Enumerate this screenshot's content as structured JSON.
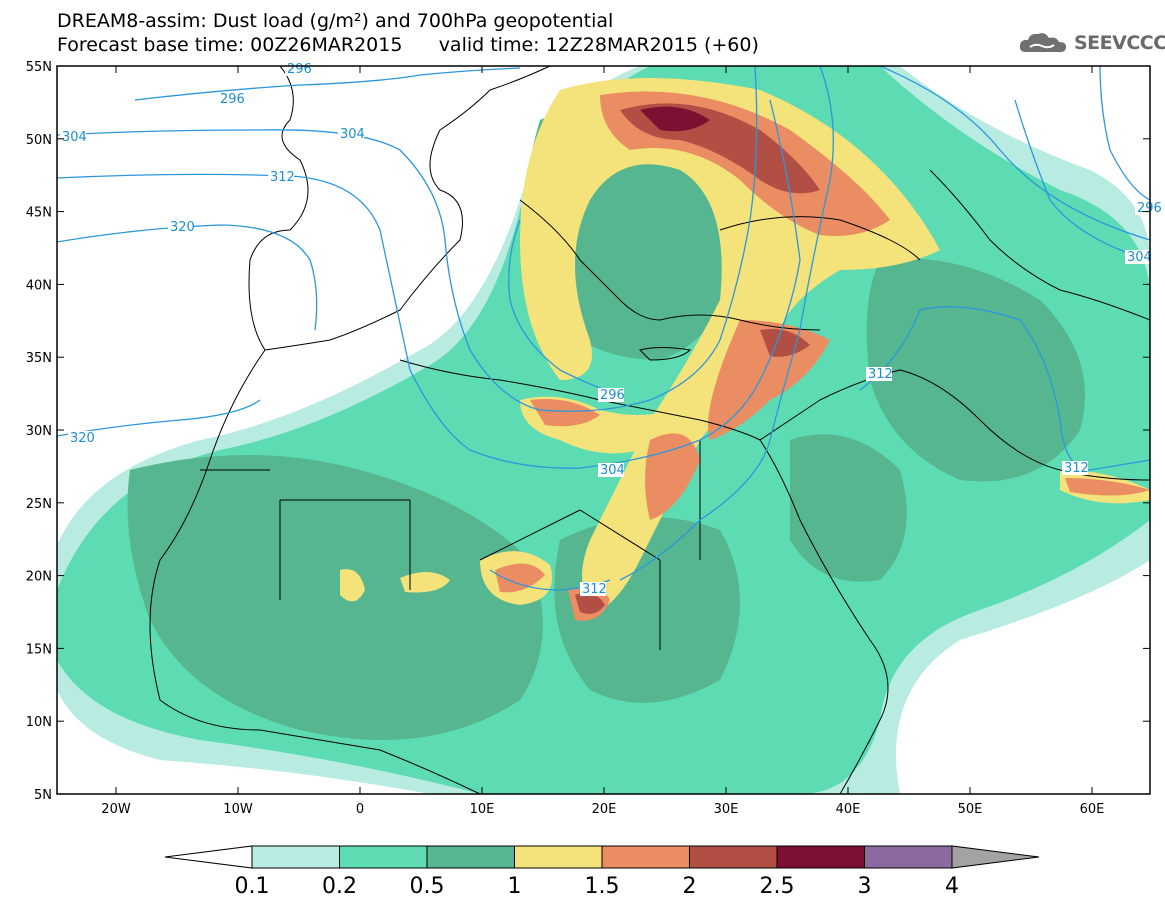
{
  "header": {
    "title_line1": "DREAM8-assim: Dust load (g/m²) and 700hPa geopotential",
    "title_line2": "Forecast base time: 00Z26MAR2015      valid time: 12Z28MAR2015 (+60)",
    "logo_text": "SEEVCCC"
  },
  "map": {
    "lat_labels": [
      "55N",
      "50N",
      "45N",
      "40N",
      "35N",
      "30N",
      "25N",
      "20N",
      "15N",
      "10N",
      "5N"
    ],
    "lon_labels": [
      "20W",
      "10W",
      "0",
      "10E",
      "20E",
      "30E",
      "40E",
      "50E",
      "60E"
    ],
    "contour_color": "#2c97dc",
    "contour_labels": [
      "296",
      "304",
      "312",
      "320",
      "296",
      "304",
      "312",
      "320",
      "296",
      "304",
      "312",
      "312",
      "304",
      "296"
    ]
  },
  "legend": {
    "ticks": [
      "0.1",
      "0.2",
      "0.5",
      "1",
      "1.5",
      "2",
      "2.5",
      "3",
      "4"
    ],
    "colors": [
      "#ffffff",
      "#b8ece2",
      "#5ddcb3",
      "#55b68f",
      "#f4e27a",
      "#ea8d62",
      "#b14f44",
      "#7c0f32",
      "#8a6aa1",
      "#a3a3a3"
    ]
  }
}
